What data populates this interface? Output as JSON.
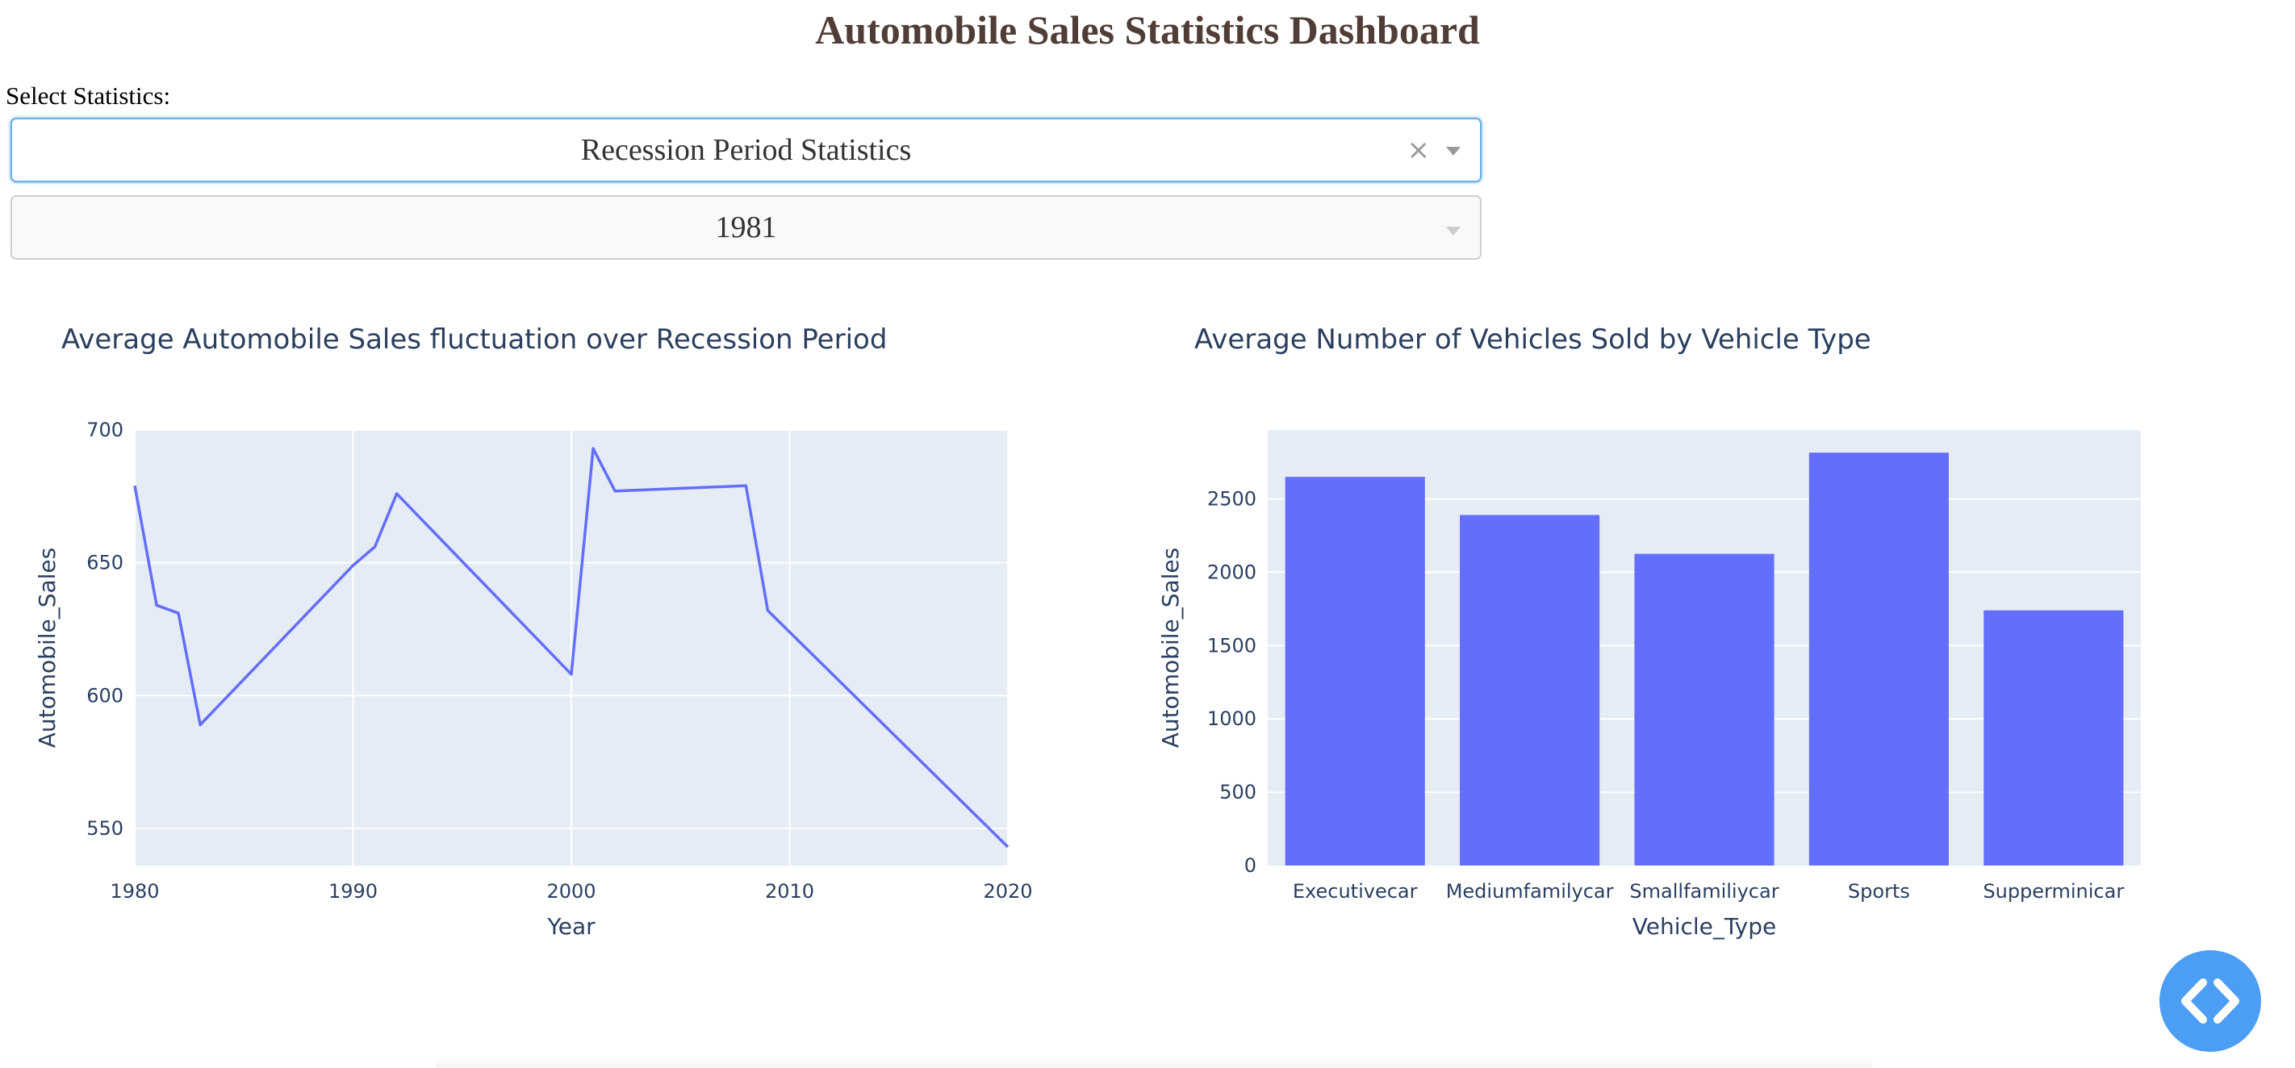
{
  "page": {
    "title": "Automobile Sales Statistics Dashboard",
    "select_label": "Select Statistics:"
  },
  "dropdowns": {
    "statistics": {
      "value": "Recession Period Statistics",
      "clear_icon": "×"
    },
    "year": {
      "value": "1981"
    }
  },
  "colors": {
    "accent": "#636EFA",
    "plot_bg": "#E5ECF6",
    "title": "#503D36",
    "fab": "#4C9EF5"
  },
  "chart_data": [
    {
      "type": "line",
      "title": "Average Automobile Sales fluctuation over Recession Period",
      "xlabel": "Year",
      "ylabel": "Automobile_Sales",
      "xlim": [
        1980,
        2020
      ],
      "ylim": [
        536,
        700
      ],
      "x_ticks": [
        1980,
        1990,
        2000,
        2010,
        2020
      ],
      "y_ticks": [
        550,
        600,
        650,
        700
      ],
      "x": [
        1980,
        1981,
        1982,
        1983,
        1990,
        1991,
        1992,
        2000,
        2001,
        2002,
        2008,
        2009,
        2020
      ],
      "y": [
        679,
        634,
        631,
        589,
        649,
        656,
        676,
        608,
        693,
        677,
        679,
        632,
        543
      ],
      "grid": true
    },
    {
      "type": "bar",
      "title": "Average Number of Vehicles Sold by Vehicle Type",
      "xlabel": "Vehicle_Type",
      "ylabel": "Automobile_Sales",
      "categories": [
        "Executivecar",
        "Mediumfamilycar",
        "Smallfamiliycar",
        "Sports",
        "Supperminicar"
      ],
      "values": [
        2650,
        2390,
        2125,
        2815,
        1740
      ],
      "ylim": [
        0,
        2970
      ],
      "y_ticks": [
        0,
        500,
        1000,
        1500,
        2000,
        2500
      ],
      "grid": true
    }
  ],
  "fab": {
    "icon": "code-icon"
  }
}
